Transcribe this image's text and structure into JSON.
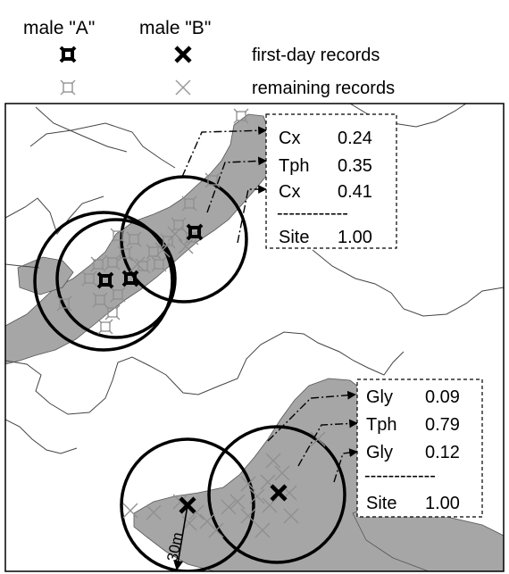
{
  "legend": {
    "col_a": "male \"A\"",
    "col_b": "male \"B\"",
    "row_first": "first-day records",
    "row_remaining": "remaining records"
  },
  "scale_label": "30m",
  "box_top": {
    "rows": [
      {
        "code": "Cx",
        "value": "0.24"
      },
      {
        "code": "Tph",
        "value": "0.35"
      },
      {
        "code": "Cx",
        "value": "0.41"
      }
    ],
    "separator": "------------",
    "site_label": "Site",
    "site_value": "1.00"
  },
  "box_bottom": {
    "rows": [
      {
        "code": "Gly",
        "value": "0.09"
      },
      {
        "code": "Tph",
        "value": "0.79"
      },
      {
        "code": "Gly",
        "value": "0.12"
      }
    ],
    "separator": "------------",
    "site_label": "Site",
    "site_value": "1.00"
  },
  "colors": {
    "habitat_fill": "#a6a6a6",
    "ink": "#000000",
    "remaining_marker": "#9a9a9a"
  }
}
